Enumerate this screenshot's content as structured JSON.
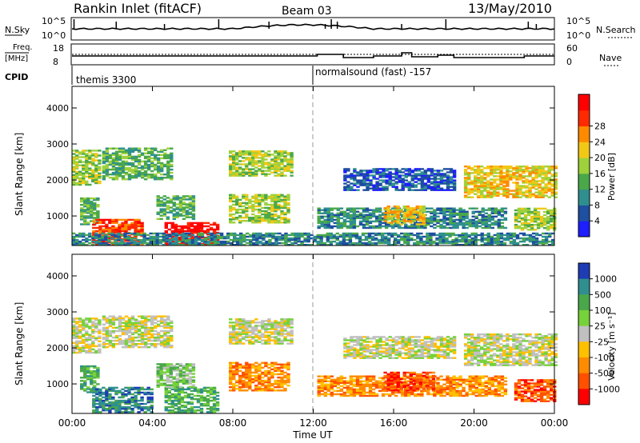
{
  "header": {
    "station": "Rankin Inlet (fitACF)",
    "beam": "Beam 03",
    "date": "13/May/2010"
  },
  "status_panels": {
    "nsky_label": "N.Sky",
    "nsky_ticks": [
      "10^5",
      "10^0"
    ],
    "nsearch_label": "N.Search",
    "nsearch_ticks": [
      "10^5",
      "10^0"
    ],
    "freq_label_1": "Freq.",
    "freq_label_2": "[MHz]",
    "freq_ticks": [
      "18",
      "8"
    ],
    "nave_label": "Nave",
    "nave_ticks": [
      "60",
      "0"
    ],
    "cpid_label": "CPID",
    "cpid_entries": [
      {
        "label": "themis 3300",
        "start_hour": 0
      },
      {
        "label": "normalsound (fast) -157",
        "start_hour": 12
      }
    ]
  },
  "x_axis": {
    "label": "Time UT",
    "ticks": [
      "00:00",
      "04:00",
      "08:00",
      "12:00",
      "16:00",
      "20:00",
      "00:00"
    ]
  },
  "chart_data": [
    {
      "type": "heatmap",
      "panel": "power",
      "xlabel": "Time UT",
      "ylabel": "Slant Range [km]",
      "xlim": [
        0,
        24
      ],
      "ylim": [
        180,
        4600
      ],
      "yticks": [
        1000,
        2000,
        3000,
        4000
      ],
      "colorbar": {
        "label": "Power [dB]",
        "ticks": [
          "4",
          "8",
          "12",
          "16",
          "20",
          "24",
          "28"
        ],
        "colors": [
          "#1e1eff",
          "#1e4fa0",
          "#2f8f8f",
          "#4aa84a",
          "#9fd13a",
          "#f2c816",
          "#ff8a00",
          "#ff2a00",
          "#ff0000"
        ]
      },
      "blobs": [
        {
          "t": [
            0.0,
            1.4
          ],
          "r": [
            1850,
            2800
          ],
          "level": 4
        },
        {
          "t": [
            1.5,
            5.0
          ],
          "r": [
            2000,
            2900
          ],
          "level": 3
        },
        {
          "t": [
            7.8,
            11.0
          ],
          "r": [
            2100,
            2800
          ],
          "level": 4
        },
        {
          "t": [
            0.4,
            1.3
          ],
          "r": [
            750,
            1500
          ],
          "level": 3
        },
        {
          "t": [
            1.0,
            3.5
          ],
          "r": [
            200,
            900
          ],
          "level": 7
        },
        {
          "t": [
            4.6,
            7.3
          ],
          "r": [
            200,
            800
          ],
          "level": 8
        },
        {
          "t": [
            4.2,
            6.0
          ],
          "r": [
            900,
            1550
          ],
          "level": 3
        },
        {
          "t": [
            7.8,
            10.8
          ],
          "r": [
            800,
            1600
          ],
          "level": 4
        },
        {
          "t": [
            12.2,
            21.5
          ],
          "r": [
            650,
            1200
          ],
          "level": 2
        },
        {
          "t": [
            15.5,
            17.5
          ],
          "r": [
            750,
            1250
          ],
          "level": 5
        },
        {
          "t": [
            19.5,
            24.0
          ],
          "r": [
            1500,
            2400
          ],
          "level": 5
        },
        {
          "t": [
            22.0,
            24.0
          ],
          "r": [
            600,
            1200
          ],
          "level": 4
        },
        {
          "t": [
            13.5,
            19.0
          ],
          "r": [
            1700,
            2300
          ],
          "level": 1
        },
        {
          "t": [
            0.0,
            24.0
          ],
          "r": [
            180,
            500
          ],
          "level": 2
        }
      ]
    },
    {
      "type": "heatmap",
      "panel": "velocity",
      "xlabel": "Time UT",
      "ylabel": "Slant Range [km]",
      "xlim": [
        0,
        24
      ],
      "ylim": [
        180,
        4600
      ],
      "yticks": [
        1000,
        2000,
        3000,
        4000
      ],
      "colorbar": {
        "label": "Velocity [m s⁻¹]",
        "ticks": [
          "1000",
          "500",
          "100",
          "25",
          "-25",
          "-100",
          "-500",
          "-1000"
        ],
        "colors": [
          "#1e3cb4",
          "#2f8f8f",
          "#4aa84a",
          "#76d23a",
          "#c0c0c0",
          "#ffc000",
          "#ff8c00",
          "#ff5000",
          "#ff0000"
        ]
      },
      "blobs": [
        {
          "t": [
            0.0,
            1.4
          ],
          "r": [
            1850,
            2800
          ],
          "level": 4
        },
        {
          "t": [
            1.5,
            5.0
          ],
          "r": [
            2000,
            2900
          ],
          "level": 4
        },
        {
          "t": [
            7.8,
            11.0
          ],
          "r": [
            2100,
            2800
          ],
          "level": 4
        },
        {
          "t": [
            0.4,
            1.3
          ],
          "r": [
            750,
            1500
          ],
          "level": 2
        },
        {
          "t": [
            1.0,
            4.0
          ],
          "r": [
            200,
            900
          ],
          "level": 1
        },
        {
          "t": [
            4.6,
            7.3
          ],
          "r": [
            200,
            900
          ],
          "level": 2
        },
        {
          "t": [
            4.2,
            6.0
          ],
          "r": [
            900,
            1550
          ],
          "level": 3
        },
        {
          "t": [
            7.8,
            10.8
          ],
          "r": [
            800,
            1600
          ],
          "level": 6
        },
        {
          "t": [
            12.2,
            21.5
          ],
          "r": [
            650,
            1200
          ],
          "level": 6
        },
        {
          "t": [
            15.5,
            18.0
          ],
          "r": [
            800,
            1300
          ],
          "level": 7
        },
        {
          "t": [
            19.5,
            24.0
          ],
          "r": [
            1500,
            2400
          ],
          "level": 4
        },
        {
          "t": [
            22.0,
            24.0
          ],
          "r": [
            500,
            1100
          ],
          "level": 7
        },
        {
          "t": [
            13.5,
            19.0
          ],
          "r": [
            1700,
            2300
          ],
          "level": 4
        }
      ]
    }
  ]
}
